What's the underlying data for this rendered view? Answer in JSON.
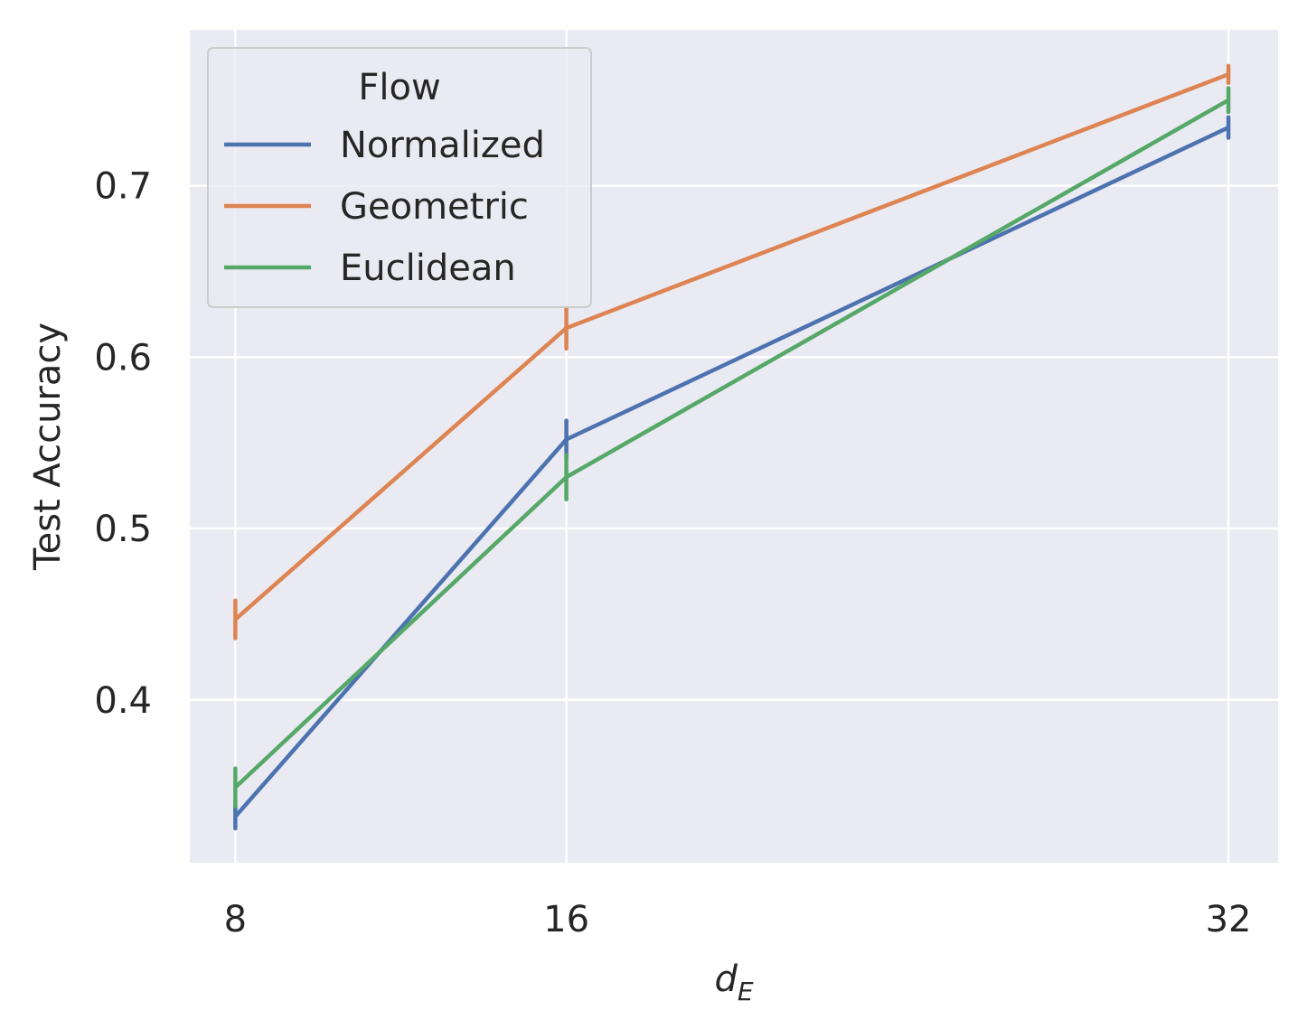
{
  "chart_data": {
    "type": "line",
    "x": [
      8,
      16,
      32
    ],
    "xlabel_main": "d",
    "xlabel_sub": "E",
    "ylabel": "Test Accuracy",
    "xticks": [
      "8",
      "16",
      "32"
    ],
    "yticks": [
      "0.4",
      "0.5",
      "0.6",
      "0.7"
    ],
    "ytick_values": [
      0.4,
      0.5,
      0.6,
      0.7
    ],
    "xlim": [
      6.9,
      33.2
    ],
    "ylim": [
      0.305,
      0.791
    ],
    "grid": true,
    "legend_title": "Flow",
    "legend_position": "top-left",
    "series": [
      {
        "name": "Normalized",
        "color": "#4c72b0",
        "values": [
          0.332,
          0.552,
          0.734
        ],
        "error": [
          0.007,
          0.011,
          0.006
        ]
      },
      {
        "name": "Geometric",
        "color": "#dd8452",
        "values": [
          0.447,
          0.617,
          0.765
        ],
        "error": [
          0.011,
          0.012,
          0.005
        ]
      },
      {
        "name": "Euclidean",
        "color": "#55a868",
        "values": [
          0.349,
          0.53,
          0.75
        ],
        "error": [
          0.011,
          0.013,
          0.007
        ]
      }
    ]
  }
}
